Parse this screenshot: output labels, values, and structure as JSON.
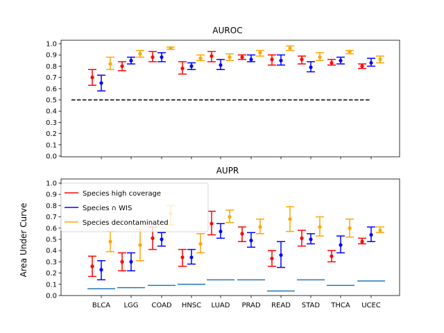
{
  "chart_data": [
    {
      "type": "errorbar",
      "title": "AUROC",
      "xlabel": "",
      "ylabel": "",
      "ylim": [
        0.0,
        1.0
      ],
      "yticks": [
        "0.0",
        "0.1",
        "0.2",
        "0.3",
        "0.4",
        "0.5",
        "0.6",
        "0.7",
        "0.8",
        "0.9",
        "1.0"
      ],
      "categories": [
        "BLCA",
        "LGG",
        "COAD",
        "HNSC",
        "LUAD",
        "PRAD",
        "READ",
        "STAD",
        "THCA",
        "UCEC"
      ],
      "show_x_tick_labels": false,
      "reference_line": {
        "value": 0.5,
        "style": "dashed",
        "color": "#000000"
      },
      "series": [
        {
          "name": "Species high coverage",
          "color": "#ff0000",
          "values": [
            0.7,
            0.8,
            0.88,
            0.78,
            0.89,
            0.88,
            0.86,
            0.86,
            0.83,
            0.8
          ],
          "lower": [
            0.63,
            0.76,
            0.84,
            0.73,
            0.84,
            0.86,
            0.81,
            0.82,
            0.81,
            0.78
          ],
          "upper": [
            0.77,
            0.84,
            0.93,
            0.84,
            0.93,
            0.9,
            0.9,
            0.89,
            0.86,
            0.82
          ]
        },
        {
          "name": "Species ∩ WIS",
          "color": "#0000ff",
          "values": [
            0.65,
            0.85,
            0.88,
            0.8,
            0.81,
            0.86,
            0.85,
            0.79,
            0.85,
            0.83
          ],
          "lower": [
            0.58,
            0.82,
            0.84,
            0.77,
            0.77,
            0.84,
            0.81,
            0.75,
            0.82,
            0.8
          ],
          "upper": [
            0.72,
            0.88,
            0.92,
            0.83,
            0.86,
            0.9,
            0.9,
            0.84,
            0.88,
            0.87
          ]
        },
        {
          "name": "Species decontaminated",
          "color": "#ffa500",
          "values": [
            0.82,
            0.91,
            0.96,
            0.87,
            0.88,
            0.92,
            0.96,
            0.88,
            0.93,
            0.86
          ],
          "lower": [
            0.77,
            0.88,
            0.95,
            0.85,
            0.85,
            0.89,
            0.94,
            0.85,
            0.91,
            0.83
          ],
          "upper": [
            0.88,
            0.94,
            0.97,
            0.9,
            0.91,
            0.94,
            0.98,
            0.92,
            0.94,
            0.89
          ]
        }
      ]
    },
    {
      "type": "errorbar",
      "title": "AUPR",
      "xlabel": "",
      "ylabel": "Area Under Curve",
      "ylim": [
        0.0,
        1.0
      ],
      "yticks": [
        "0.0",
        "0.1",
        "0.2",
        "0.3",
        "0.4",
        "0.5",
        "0.6",
        "0.7",
        "0.8",
        "0.9",
        "1.0"
      ],
      "categories": [
        "BLCA",
        "LGG",
        "COAD",
        "HNSC",
        "LUAD",
        "PRAD",
        "READ",
        "STAD",
        "THCA",
        "UCEC"
      ],
      "show_x_tick_labels": true,
      "legend": {
        "placement": "upper-left"
      },
      "baselines": {
        "color": "#1f77b4",
        "values": [
          0.06,
          0.07,
          0.09,
          0.1,
          0.14,
          0.14,
          0.04,
          0.14,
          0.09,
          0.13
        ]
      },
      "series": [
        {
          "name": "Species high coverage",
          "color": "#ff0000",
          "values": [
            0.26,
            0.3,
            0.51,
            0.34,
            0.64,
            0.55,
            0.33,
            0.51,
            0.35,
            0.48
          ],
          "lower": [
            0.17,
            0.22,
            0.41,
            0.26,
            0.54,
            0.48,
            0.26,
            0.44,
            0.3,
            0.46
          ],
          "upper": [
            0.35,
            0.38,
            0.61,
            0.41,
            0.75,
            0.61,
            0.4,
            0.58,
            0.4,
            0.51
          ]
        },
        {
          "name": "Species ∩ WIS",
          "color": "#0000ff",
          "values": [
            0.23,
            0.3,
            0.5,
            0.34,
            0.57,
            0.49,
            0.36,
            0.5,
            0.45,
            0.54
          ],
          "lower": [
            0.14,
            0.22,
            0.44,
            0.28,
            0.51,
            0.43,
            0.25,
            0.46,
            0.38,
            0.48
          ],
          "upper": [
            0.31,
            0.38,
            0.56,
            0.41,
            0.64,
            0.56,
            0.48,
            0.55,
            0.53,
            0.61
          ]
        },
        {
          "name": "Species decontaminated",
          "color": "#ffa500",
          "values": [
            0.48,
            0.45,
            0.73,
            0.46,
            0.7,
            0.61,
            0.68,
            0.61,
            0.6,
            0.58
          ],
          "lower": [
            0.39,
            0.31,
            0.63,
            0.38,
            0.65,
            0.55,
            0.57,
            0.53,
            0.52,
            0.56
          ],
          "upper": [
            0.57,
            0.59,
            0.8,
            0.55,
            0.76,
            0.68,
            0.79,
            0.7,
            0.68,
            0.61
          ]
        }
      ]
    }
  ]
}
